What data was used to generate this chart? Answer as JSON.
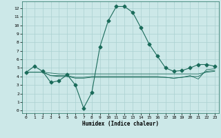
{
  "xlabel": "Humidex (Indice chaleur)",
  "x_ticks": [
    0,
    1,
    2,
    3,
    4,
    5,
    6,
    7,
    8,
    9,
    10,
    11,
    12,
    13,
    14,
    15,
    16,
    17,
    18,
    19,
    20,
    21,
    22,
    23
  ],
  "y_ticks": [
    0,
    1,
    2,
    3,
    4,
    5,
    6,
    7,
    8,
    9,
    10,
    11,
    12
  ],
  "xlim": [
    -0.5,
    23.5
  ],
  "ylim": [
    -0.3,
    12.8
  ],
  "bg_color": "#cce8e8",
  "grid_color": "#aad0d0",
  "line_color": "#1a6b5a",
  "series": {
    "main": [
      4.5,
      5.2,
      4.6,
      3.3,
      3.5,
      4.2,
      3.0,
      0.3,
      2.1,
      7.5,
      10.5,
      12.2,
      12.2,
      11.5,
      9.7,
      7.8,
      6.4,
      5.0,
      4.6,
      4.7,
      5.0,
      5.4,
      5.4,
      5.2
    ],
    "flat1": [
      4.5,
      4.5,
      4.5,
      4.4,
      4.3,
      4.3,
      4.3,
      4.3,
      4.3,
      4.3,
      4.3,
      4.3,
      4.3,
      4.3,
      4.3,
      4.3,
      4.3,
      4.3,
      4.3,
      4.3,
      4.3,
      4.3,
      4.5,
      4.6
    ],
    "flat2": [
      4.5,
      4.5,
      4.5,
      4.1,
      4.0,
      4.0,
      3.8,
      3.8,
      3.9,
      3.9,
      3.9,
      3.9,
      3.9,
      3.9,
      3.9,
      3.9,
      3.9,
      3.9,
      3.8,
      3.9,
      4.0,
      4.0,
      4.6,
      4.7
    ],
    "flat3": [
      4.5,
      4.5,
      4.5,
      4.1,
      4.1,
      4.1,
      3.9,
      3.9,
      4.0,
      4.0,
      4.0,
      4.0,
      4.0,
      4.0,
      4.0,
      4.0,
      4.0,
      3.9,
      3.8,
      3.9,
      4.1,
      3.7,
      4.8,
      4.9
    ]
  },
  "marker": "D",
  "markersize": 2.5,
  "lw_main": 0.8,
  "lw_flat": 0.6
}
